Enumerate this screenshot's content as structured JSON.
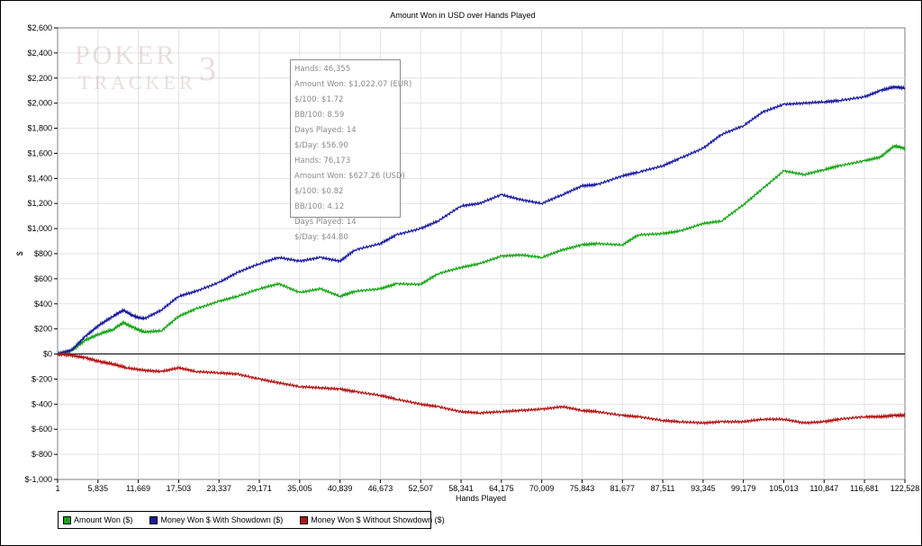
{
  "watermark": {
    "line1": "POKER",
    "line2": "TRACKER",
    "number": "3"
  },
  "tooltip": {
    "lines": [
      "Hands: 46,355",
      "Amount Won: $1,022.07 (EUR)",
      "$/100: $1.72",
      "BB/100: 8.59",
      "Days Played: 14",
      "$/Day: $56.90",
      "Hands: 76,173",
      "Amount Won: $627.26 (USD)",
      "$/100: $0.82",
      "BB/100: 4.12",
      "Days Played: 14",
      "$/Day: $44.80"
    ]
  },
  "chart_data": {
    "type": "line",
    "title": "Amount Won in USD over Hands Played",
    "xlabel": "Hands Played",
    "ylabel": "$",
    "xlim": [
      1,
      122528
    ],
    "ylim": [
      -1000,
      2600
    ],
    "grid": true,
    "x_ticks": [
      1,
      5835,
      11669,
      17503,
      23337,
      29171,
      35005,
      40839,
      46673,
      52507,
      58341,
      64175,
      70009,
      75843,
      81677,
      87511,
      93345,
      99179,
      105013,
      110847,
      116681,
      122528
    ],
    "x_tick_labels": [
      "1",
      "5,835",
      "11,669",
      "17,503",
      "23,337",
      "29,171",
      "35,005",
      "40,839",
      "46,673",
      "52,507",
      "58,341",
      "64,175",
      "70,009",
      "75,843",
      "81,677",
      "87,511",
      "93,345",
      "99,179",
      "105,013",
      "110,847",
      "116,681",
      "122,528"
    ],
    "y_ticks": [
      -1000,
      -800,
      -600,
      -400,
      -200,
      0,
      200,
      400,
      600,
      800,
      1000,
      1200,
      1400,
      1600,
      1800,
      2000,
      2200,
      2400,
      2600
    ],
    "y_tick_labels": [
      "$-1,000",
      "$-800",
      "$-600",
      "$-400",
      "$-200",
      "$0",
      "$200",
      "$400",
      "$600",
      "$800",
      "$1,000",
      "$1,200",
      "$1,400",
      "$1,600",
      "$1,800",
      "$2,000",
      "$2,200",
      "$2,400",
      "$2,600"
    ],
    "legend_position": "bottom-left",
    "series": [
      {
        "name": "Amount Won ($)",
        "color": "#16a516",
        "points": [
          [
            1,
            0
          ],
          [
            2000,
            25
          ],
          [
            4000,
            110
          ],
          [
            6000,
            160
          ],
          [
            8000,
            195
          ],
          [
            9500,
            250
          ],
          [
            11000,
            210
          ],
          [
            12500,
            175
          ],
          [
            15000,
            185
          ],
          [
            17503,
            300
          ],
          [
            20000,
            360
          ],
          [
            23337,
            420
          ],
          [
            26000,
            460
          ],
          [
            29171,
            520
          ],
          [
            32000,
            560
          ],
          [
            35005,
            490
          ],
          [
            38000,
            520
          ],
          [
            40839,
            460
          ],
          [
            43000,
            500
          ],
          [
            46673,
            520
          ],
          [
            49000,
            560
          ],
          [
            52507,
            555
          ],
          [
            55000,
            640
          ],
          [
            58341,
            690
          ],
          [
            61000,
            720
          ],
          [
            64175,
            780
          ],
          [
            67000,
            790
          ],
          [
            70009,
            770
          ],
          [
            73000,
            830
          ],
          [
            75843,
            870
          ],
          [
            78000,
            880
          ],
          [
            81677,
            870
          ],
          [
            84000,
            950
          ],
          [
            87511,
            960
          ],
          [
            90000,
            980
          ],
          [
            93345,
            1040
          ],
          [
            96000,
            1060
          ],
          [
            99179,
            1190
          ],
          [
            102000,
            1320
          ],
          [
            105013,
            1460
          ],
          [
            108000,
            1430
          ],
          [
            110847,
            1470
          ],
          [
            113000,
            1500
          ],
          [
            116681,
            1540
          ],
          [
            119000,
            1570
          ],
          [
            121000,
            1660
          ],
          [
            122528,
            1640
          ]
        ]
      },
      {
        "name": "Money Won $ With Showdown ($)",
        "color": "#1a1aa0",
        "points": [
          [
            1,
            0
          ],
          [
            2000,
            30
          ],
          [
            4000,
            140
          ],
          [
            6000,
            230
          ],
          [
            8000,
            300
          ],
          [
            9500,
            350
          ],
          [
            11000,
            300
          ],
          [
            12500,
            280
          ],
          [
            15000,
            350
          ],
          [
            17503,
            460
          ],
          [
            20000,
            500
          ],
          [
            23337,
            570
          ],
          [
            26000,
            650
          ],
          [
            29171,
            720
          ],
          [
            32000,
            770
          ],
          [
            35005,
            740
          ],
          [
            38000,
            770
          ],
          [
            40839,
            740
          ],
          [
            43000,
            830
          ],
          [
            46673,
            880
          ],
          [
            49000,
            950
          ],
          [
            52507,
            1000
          ],
          [
            55000,
            1060
          ],
          [
            58341,
            1180
          ],
          [
            61000,
            1200
          ],
          [
            64175,
            1270
          ],
          [
            67000,
            1230
          ],
          [
            70009,
            1200
          ],
          [
            73000,
            1270
          ],
          [
            75843,
            1340
          ],
          [
            78000,
            1350
          ],
          [
            81677,
            1420
          ],
          [
            84000,
            1450
          ],
          [
            87511,
            1500
          ],
          [
            90000,
            1560
          ],
          [
            93345,
            1640
          ],
          [
            96000,
            1750
          ],
          [
            99179,
            1820
          ],
          [
            102000,
            1930
          ],
          [
            105013,
            1990
          ],
          [
            108000,
            2000
          ],
          [
            110847,
            2010
          ],
          [
            113000,
            2020
          ],
          [
            116681,
            2050
          ],
          [
            119000,
            2100
          ],
          [
            121000,
            2130
          ],
          [
            122528,
            2120
          ]
        ]
      },
      {
        "name": "Money Won $ Without Showdown ($)",
        "color": "#b21414",
        "points": [
          [
            1,
            0
          ],
          [
            2000,
            -10
          ],
          [
            4000,
            -30
          ],
          [
            6000,
            -60
          ],
          [
            8000,
            -80
          ],
          [
            10000,
            -110
          ],
          [
            12500,
            -130
          ],
          [
            15000,
            -140
          ],
          [
            17503,
            -110
          ],
          [
            20000,
            -140
          ],
          [
            23337,
            -150
          ],
          [
            26000,
            -160
          ],
          [
            29171,
            -200
          ],
          [
            32000,
            -230
          ],
          [
            35005,
            -260
          ],
          [
            38000,
            -270
          ],
          [
            40839,
            -280
          ],
          [
            43000,
            -300
          ],
          [
            46673,
            -330
          ],
          [
            49000,
            -360
          ],
          [
            52507,
            -400
          ],
          [
            55000,
            -420
          ],
          [
            58341,
            -460
          ],
          [
            61000,
            -470
          ],
          [
            64175,
            -460
          ],
          [
            67000,
            -450
          ],
          [
            70009,
            -440
          ],
          [
            73000,
            -420
          ],
          [
            75843,
            -450
          ],
          [
            78000,
            -460
          ],
          [
            81677,
            -490
          ],
          [
            84000,
            -500
          ],
          [
            87511,
            -530
          ],
          [
            90000,
            -540
          ],
          [
            93345,
            -550
          ],
          [
            96000,
            -540
          ],
          [
            99179,
            -540
          ],
          [
            102000,
            -520
          ],
          [
            105013,
            -520
          ],
          [
            108000,
            -550
          ],
          [
            110847,
            -540
          ],
          [
            113000,
            -520
          ],
          [
            116681,
            -500
          ],
          [
            119000,
            -500
          ],
          [
            121000,
            -490
          ],
          [
            122528,
            -490
          ]
        ]
      }
    ]
  }
}
